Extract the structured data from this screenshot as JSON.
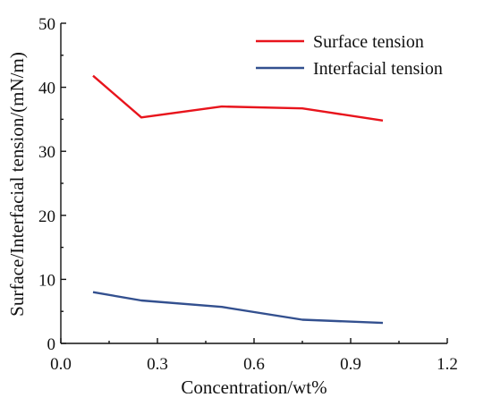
{
  "chart_data": {
    "type": "line",
    "xlabel": "Concentration/wt%",
    "ylabel": "Surface/Interfacial tension/(mN/m)",
    "xlim": [
      0.0,
      1.2
    ],
    "ylim": [
      0,
      50
    ],
    "xticks": [
      "0.0",
      "0.3",
      "0.6",
      "0.9",
      "1.2"
    ],
    "yticks": [
      "0",
      "10",
      "20",
      "30",
      "40",
      "50"
    ],
    "grid": false,
    "legend_position": "top-right",
    "series": [
      {
        "name": "Surface tension",
        "color": "#e8141c",
        "x": [
          0.1,
          0.25,
          0.5,
          0.75,
          1.0
        ],
        "y": [
          41.8,
          35.3,
          37.0,
          36.7,
          34.8
        ]
      },
      {
        "name": "Interfacial tension",
        "color": "#33508f",
        "x": [
          0.1,
          0.25,
          0.5,
          0.75,
          1.0
        ],
        "y": [
          8.0,
          6.7,
          5.7,
          3.7,
          3.2
        ]
      }
    ]
  }
}
